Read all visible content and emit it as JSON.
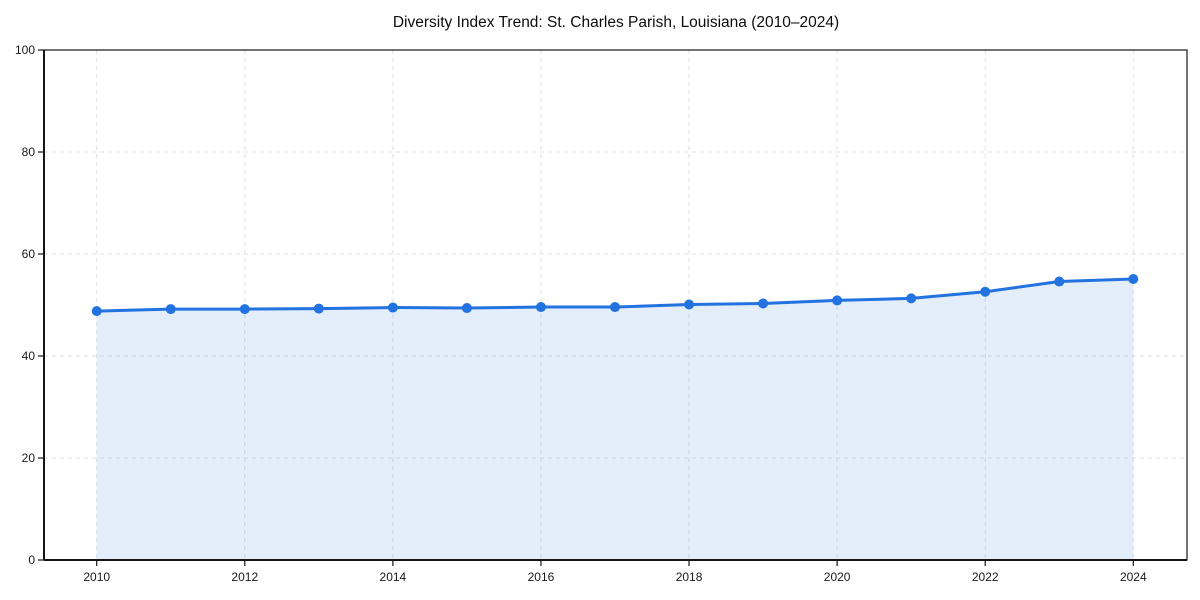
{
  "chart_data": {
    "type": "area",
    "title": "Diversity Index Trend: St. Charles Parish, Louisiana (2010–2024)",
    "x": [
      2010,
      2011,
      2012,
      2013,
      2014,
      2015,
      2016,
      2017,
      2018,
      2019,
      2020,
      2021,
      2022,
      2023,
      2024
    ],
    "values": [
      48.8,
      49.2,
      49.2,
      49.3,
      49.5,
      49.4,
      49.6,
      49.6,
      50.1,
      50.3,
      50.9,
      51.3,
      52.6,
      54.6,
      55.1
    ],
    "xlabel": "",
    "ylabel": "",
    "xlim": [
      2009.3,
      2024.73
    ],
    "ylim": [
      0,
      100
    ],
    "xticks": [
      2010,
      2012,
      2014,
      2016,
      2018,
      2020,
      2022,
      2024
    ],
    "yticks": [
      0,
      20,
      40,
      60,
      80,
      100
    ],
    "grid": true,
    "grid_style": "dashed",
    "legend": false,
    "marker": "circle",
    "colors": {
      "line": "#2272e0",
      "fill": "#2272e0",
      "fill_opacity": 0.12,
      "grid": "#dfdfdf",
      "axis": "#151515",
      "text": "#1a1a1a",
      "background": "#ffffff"
    }
  }
}
